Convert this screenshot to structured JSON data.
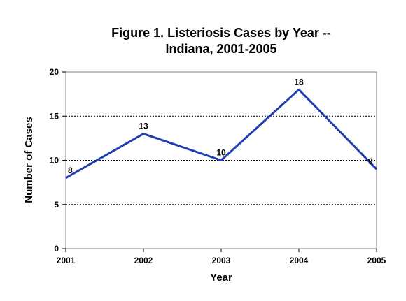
{
  "chart_data": {
    "type": "line",
    "title": "Figure 1.  Listeriosis Cases by Year --",
    "subtitle": "Indiana, 2001-2005",
    "xlabel": "Year",
    "ylabel": "Number of Cases",
    "categories": [
      "2001",
      "2002",
      "2003",
      "2004",
      "2005"
    ],
    "series": [
      {
        "values": [
          8,
          13,
          10,
          18,
          9
        ],
        "color": "#1f3fb5"
      }
    ],
    "ylim": [
      0,
      20
    ],
    "yticks": [
      0,
      5,
      10,
      15,
      20
    ],
    "gridlines": "horizontal dashed",
    "legend": "none",
    "data_labels": true
  }
}
